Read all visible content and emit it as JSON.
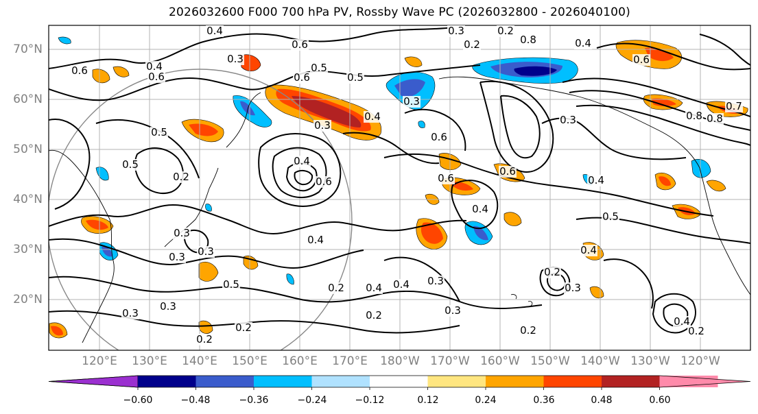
{
  "title": "2026032600 F000 700 hPa PV, Rossby Wave PC (2026032800 - 2026040100)",
  "map": {
    "lat_labels": [
      "70°N",
      "60°N",
      "50°N",
      "40°N",
      "30°N",
      "20°N"
    ],
    "lon_labels": [
      "120°E",
      "130°E",
      "140°E",
      "150°E",
      "160°E",
      "170°E",
      "180°W",
      "170°W",
      "160°W",
      "150°W",
      "140°W",
      "130°W",
      "120°W"
    ],
    "contour_labels": [
      "0.4",
      "0.2",
      "0.8",
      "0.6",
      "0.6",
      "0.4",
      "0.3",
      "0.6",
      "0.5",
      "0.6",
      "0.5",
      "0.3",
      "0.2",
      "0.3",
      "0.3",
      "0.4",
      "0.5",
      "0.4",
      "0.6",
      "0.2",
      "0.3",
      "0.3",
      "0.5",
      "0.4",
      "0.4",
      "0.2",
      "0.4",
      "0.3",
      "0.2",
      "0.4",
      "0.3",
      "0.3",
      "0.3",
      "0.2",
      "0.2",
      "0.5",
      "0.4",
      "0.3",
      "0.4",
      "0.2",
      "0.2",
      "0.2",
      "0.7",
      "0.8",
      "0.6",
      "0.6",
      "0.6",
      "0.3",
      "0.4",
      "0.3",
      "0.5",
      "0.8",
      "0.4",
      "0.6"
    ],
    "contour_style": "solid black PV contours",
    "circle_color": "#888888"
  },
  "colorbar": {
    "ticks": [
      "−0.60",
      "−0.48",
      "−0.36",
      "−0.24",
      "−0.12",
      "0.12",
      "0.24",
      "0.36",
      "0.48",
      "0.60"
    ],
    "colors": [
      "#9b30d0",
      "#00008b",
      "#3a5ccc",
      "#00bfff",
      "#b0e2ff",
      "#ffffff",
      "#ffe680",
      "#ffa500",
      "#ff4500",
      "#b22222",
      "#ff8aaa",
      "#ff8aaa"
    ]
  },
  "chart_data": {
    "type": "heatmap",
    "title": "2026032600 F000 700 hPa PV, Rossby Wave PC (2026032800 - 2026040100)",
    "x_axis": [
      "120°E",
      "130°E",
      "140°E",
      "150°E",
      "160°E",
      "170°E",
      "180°W",
      "170°W",
      "160°W",
      "150°W",
      "140°W",
      "130°W",
      "120°W"
    ],
    "y_axis": [
      "70°N",
      "60°N",
      "50°N",
      "40°N",
      "30°N",
      "20°N"
    ],
    "color_levels": [
      -0.6,
      -0.48,
      -0.36,
      -0.24,
      -0.12,
      0.12,
      0.24,
      0.36,
      0.48,
      0.6
    ],
    "contour_field": "700 hPa PV (PVU)",
    "contour_values": [
      0.2,
      0.3,
      0.4,
      0.5,
      0.6,
      0.7,
      0.8
    ]
  }
}
